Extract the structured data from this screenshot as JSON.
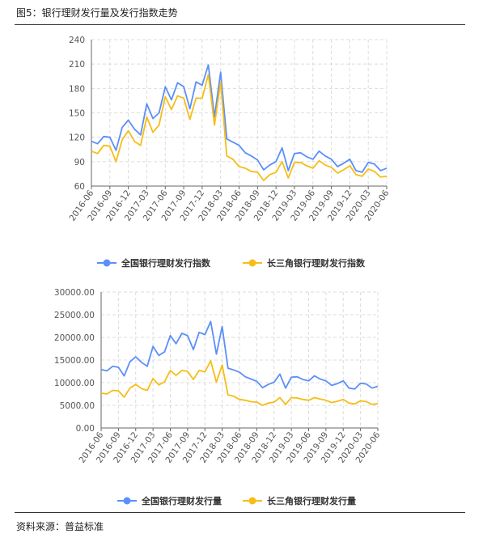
{
  "header": {
    "title": "图5：银行理财发行量及发行指数走势"
  },
  "footer": {
    "source": "资料来源：普益标准"
  },
  "colors": {
    "series1": "#5b8ff9",
    "series2": "#f6bd16",
    "grid": "#dcdcdc",
    "axis": "#666666"
  },
  "chart_data": [
    {
      "type": "line",
      "title": "",
      "xlabel": "",
      "ylabel": "",
      "x": [
        "2016-06",
        "2016-07",
        "2016-08",
        "2016-09",
        "2016-10",
        "2016-11",
        "2016-12",
        "2017-01",
        "2017-02",
        "2017-03",
        "2017-04",
        "2017-05",
        "2017-06",
        "2017-07",
        "2017-08",
        "2017-09",
        "2017-10",
        "2017-11",
        "2017-12",
        "2018-01",
        "2018-02",
        "2018-03",
        "2018-04",
        "2018-05",
        "2018-06",
        "2018-07",
        "2018-08",
        "2018-09",
        "2018-10",
        "2018-11",
        "2018-12",
        "2019-01",
        "2019-02",
        "2019-03",
        "2019-04",
        "2019-05",
        "2019-06",
        "2019-07",
        "2019-08",
        "2019-09",
        "2019-10",
        "2019-11",
        "2019-12",
        "2020-01",
        "2020-02",
        "2020-03",
        "2020-04",
        "2020-05",
        "2020-06"
      ],
      "x_tick_labels": [
        "2016-06",
        "2016-09",
        "2016-12",
        "2017-03",
        "2017-06",
        "2017-09",
        "2017-12",
        "2018-03",
        "2018-06",
        "2018-09",
        "2018-12",
        "2019-03",
        "2019-06",
        "2019-09",
        "2019-12",
        "2020-03",
        "2020-06"
      ],
      "ylim": [
        60,
        240
      ],
      "y_ticks": [
        "60",
        "90",
        "120",
        "150",
        "180",
        "210",
        "240"
      ],
      "grid": true,
      "legend": "bottom",
      "series": [
        {
          "name": "全国银行理财发行指数",
          "values": [
            115,
            112,
            121,
            120,
            104,
            132,
            141,
            130,
            123,
            161,
            143,
            150,
            182,
            166,
            187,
            182,
            155,
            188,
            184,
            209,
            145,
            200,
            118,
            114,
            110,
            101,
            97,
            92,
            80,
            86,
            90,
            107,
            79,
            100,
            101,
            96,
            93,
            103,
            97,
            93,
            84,
            88,
            93,
            79,
            77,
            89,
            87,
            79,
            82
          ]
        },
        {
          "name": "长三角银行理财发行指数",
          "values": [
            103,
            100,
            110,
            109,
            90,
            117,
            128,
            115,
            110,
            145,
            126,
            135,
            170,
            154,
            171,
            168,
            142,
            168,
            168,
            197,
            135,
            188,
            97,
            93,
            84,
            82,
            78,
            77,
            67,
            74,
            77,
            90,
            70,
            89,
            89,
            85,
            82,
            91,
            86,
            83,
            76,
            80,
            85,
            74,
            72,
            81,
            78,
            71,
            72
          ]
        }
      ]
    },
    {
      "type": "line",
      "title": "",
      "xlabel": "",
      "ylabel": "",
      "x": [
        "2016-06",
        "2016-07",
        "2016-08",
        "2016-09",
        "2016-10",
        "2016-11",
        "2016-12",
        "2017-01",
        "2017-02",
        "2017-03",
        "2017-04",
        "2017-05",
        "2017-06",
        "2017-07",
        "2017-08",
        "2017-09",
        "2017-10",
        "2017-11",
        "2017-12",
        "2018-01",
        "2018-02",
        "2018-03",
        "2018-04",
        "2018-05",
        "2018-06",
        "2018-07",
        "2018-08",
        "2018-09",
        "2018-10",
        "2018-11",
        "2018-12",
        "2019-01",
        "2019-02",
        "2019-03",
        "2019-04",
        "2019-05",
        "2019-06",
        "2019-07",
        "2019-08",
        "2019-09",
        "2019-10",
        "2019-11",
        "2019-12",
        "2020-01",
        "2020-02",
        "2020-03",
        "2020-04",
        "2020-05",
        "2020-06"
      ],
      "x_tick_labels": [
        "2016-06",
        "2016-09",
        "2016-12",
        "2017-03",
        "2017-06",
        "2017-09",
        "2017-12",
        "2018-03",
        "2018-06",
        "2018-09",
        "2018-12",
        "2019-03",
        "2019-06",
        "2019-09",
        "2019-12",
        "2020-03",
        "2020-06"
      ],
      "ylim": [
        0,
        30000
      ],
      "y_ticks": [
        "0.00",
        "5000.00",
        "10000.00",
        "15000.00",
        "20000.00",
        "25000.00",
        "30000.00"
      ],
      "grid": true,
      "legend": "bottom",
      "series": [
        {
          "name": "全国银行理财发行量",
          "values": [
            12900,
            12600,
            13600,
            13400,
            11500,
            14600,
            15700,
            14500,
            13600,
            18000,
            16000,
            16800,
            20400,
            18600,
            20900,
            20400,
            17300,
            21100,
            20600,
            23500,
            16300,
            22400,
            13200,
            12800,
            12300,
            11300,
            10800,
            10300,
            8900,
            9600,
            10100,
            11900,
            8800,
            11200,
            11300,
            10700,
            10400,
            11500,
            10800,
            10400,
            9400,
            9800,
            10400,
            8800,
            8600,
            9900,
            9700,
            8800,
            9200
          ]
        },
        {
          "name": "长三角银行理财发行量",
          "values": [
            7700,
            7500,
            8300,
            8200,
            6800,
            8800,
            9600,
            8700,
            8300,
            10900,
            9500,
            10200,
            12700,
            11600,
            12700,
            12500,
            10700,
            12700,
            12400,
            14800,
            10100,
            13900,
            7300,
            7000,
            6300,
            6100,
            5800,
            5700,
            5000,
            5500,
            5700,
            6700,
            5200,
            6700,
            6600,
            6300,
            6100,
            6700,
            6400,
            6100,
            5600,
            5900,
            6300,
            5500,
            5300,
            6000,
            5800,
            5200,
            5400
          ]
        }
      ]
    }
  ]
}
